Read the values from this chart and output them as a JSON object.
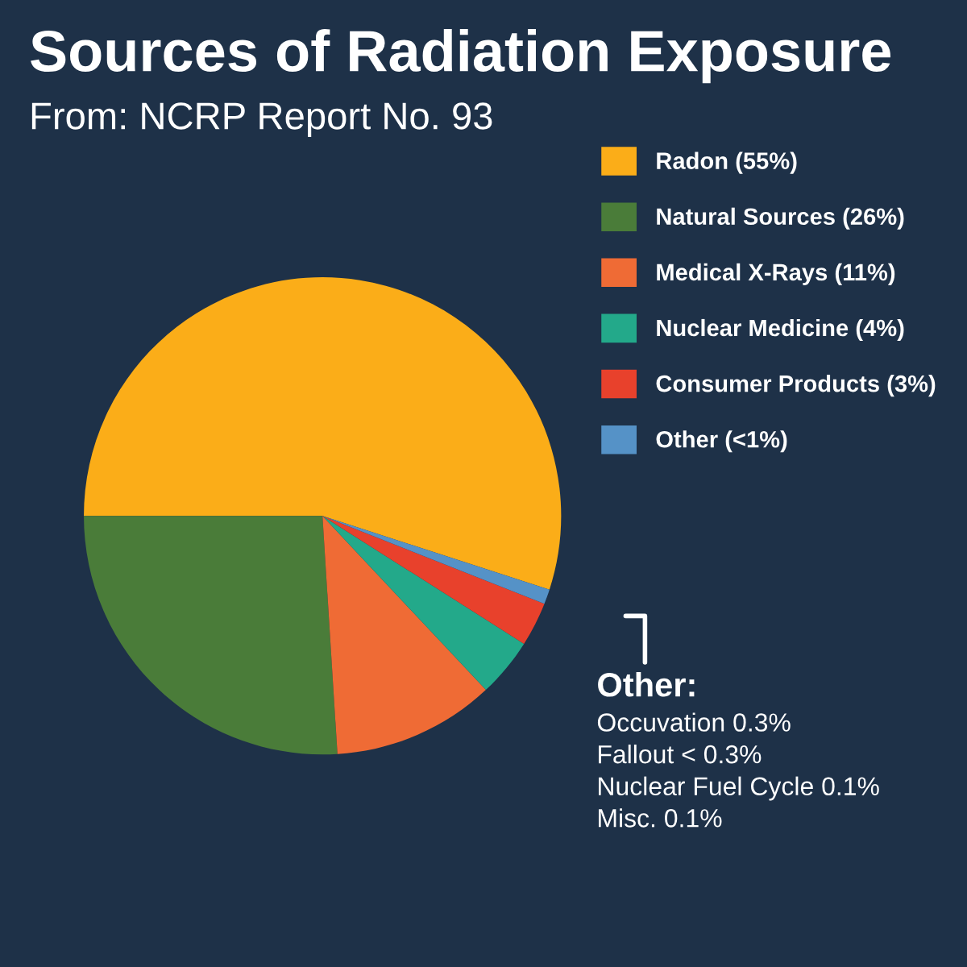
{
  "chart_data": {
    "type": "pie",
    "title": "Sources of Radiation Exposure",
    "subtitle": "From: NCRP Report No. 93",
    "categories": [
      "Radon (55%)",
      "Natural Sources (26%)",
      "Medical X-Rays (11%)",
      "Nuclear Medicine (4%)",
      "Consumer Products (3%)",
      "Other (<1%)"
    ],
    "values": [
      55,
      26,
      11,
      4,
      3,
      1
    ],
    "colors": [
      "#fbad18",
      "#4a7c39",
      "#ef6b35",
      "#23a98a",
      "#e8412c",
      "#5592c7"
    ],
    "legend": "top right",
    "annotations": [
      "Other:",
      "Occuvation 0.3%",
      "Fallout < 0.3%",
      "Nuclear Fuel Cycle 0.1%",
      "Misc. 0.1%"
    ]
  }
}
